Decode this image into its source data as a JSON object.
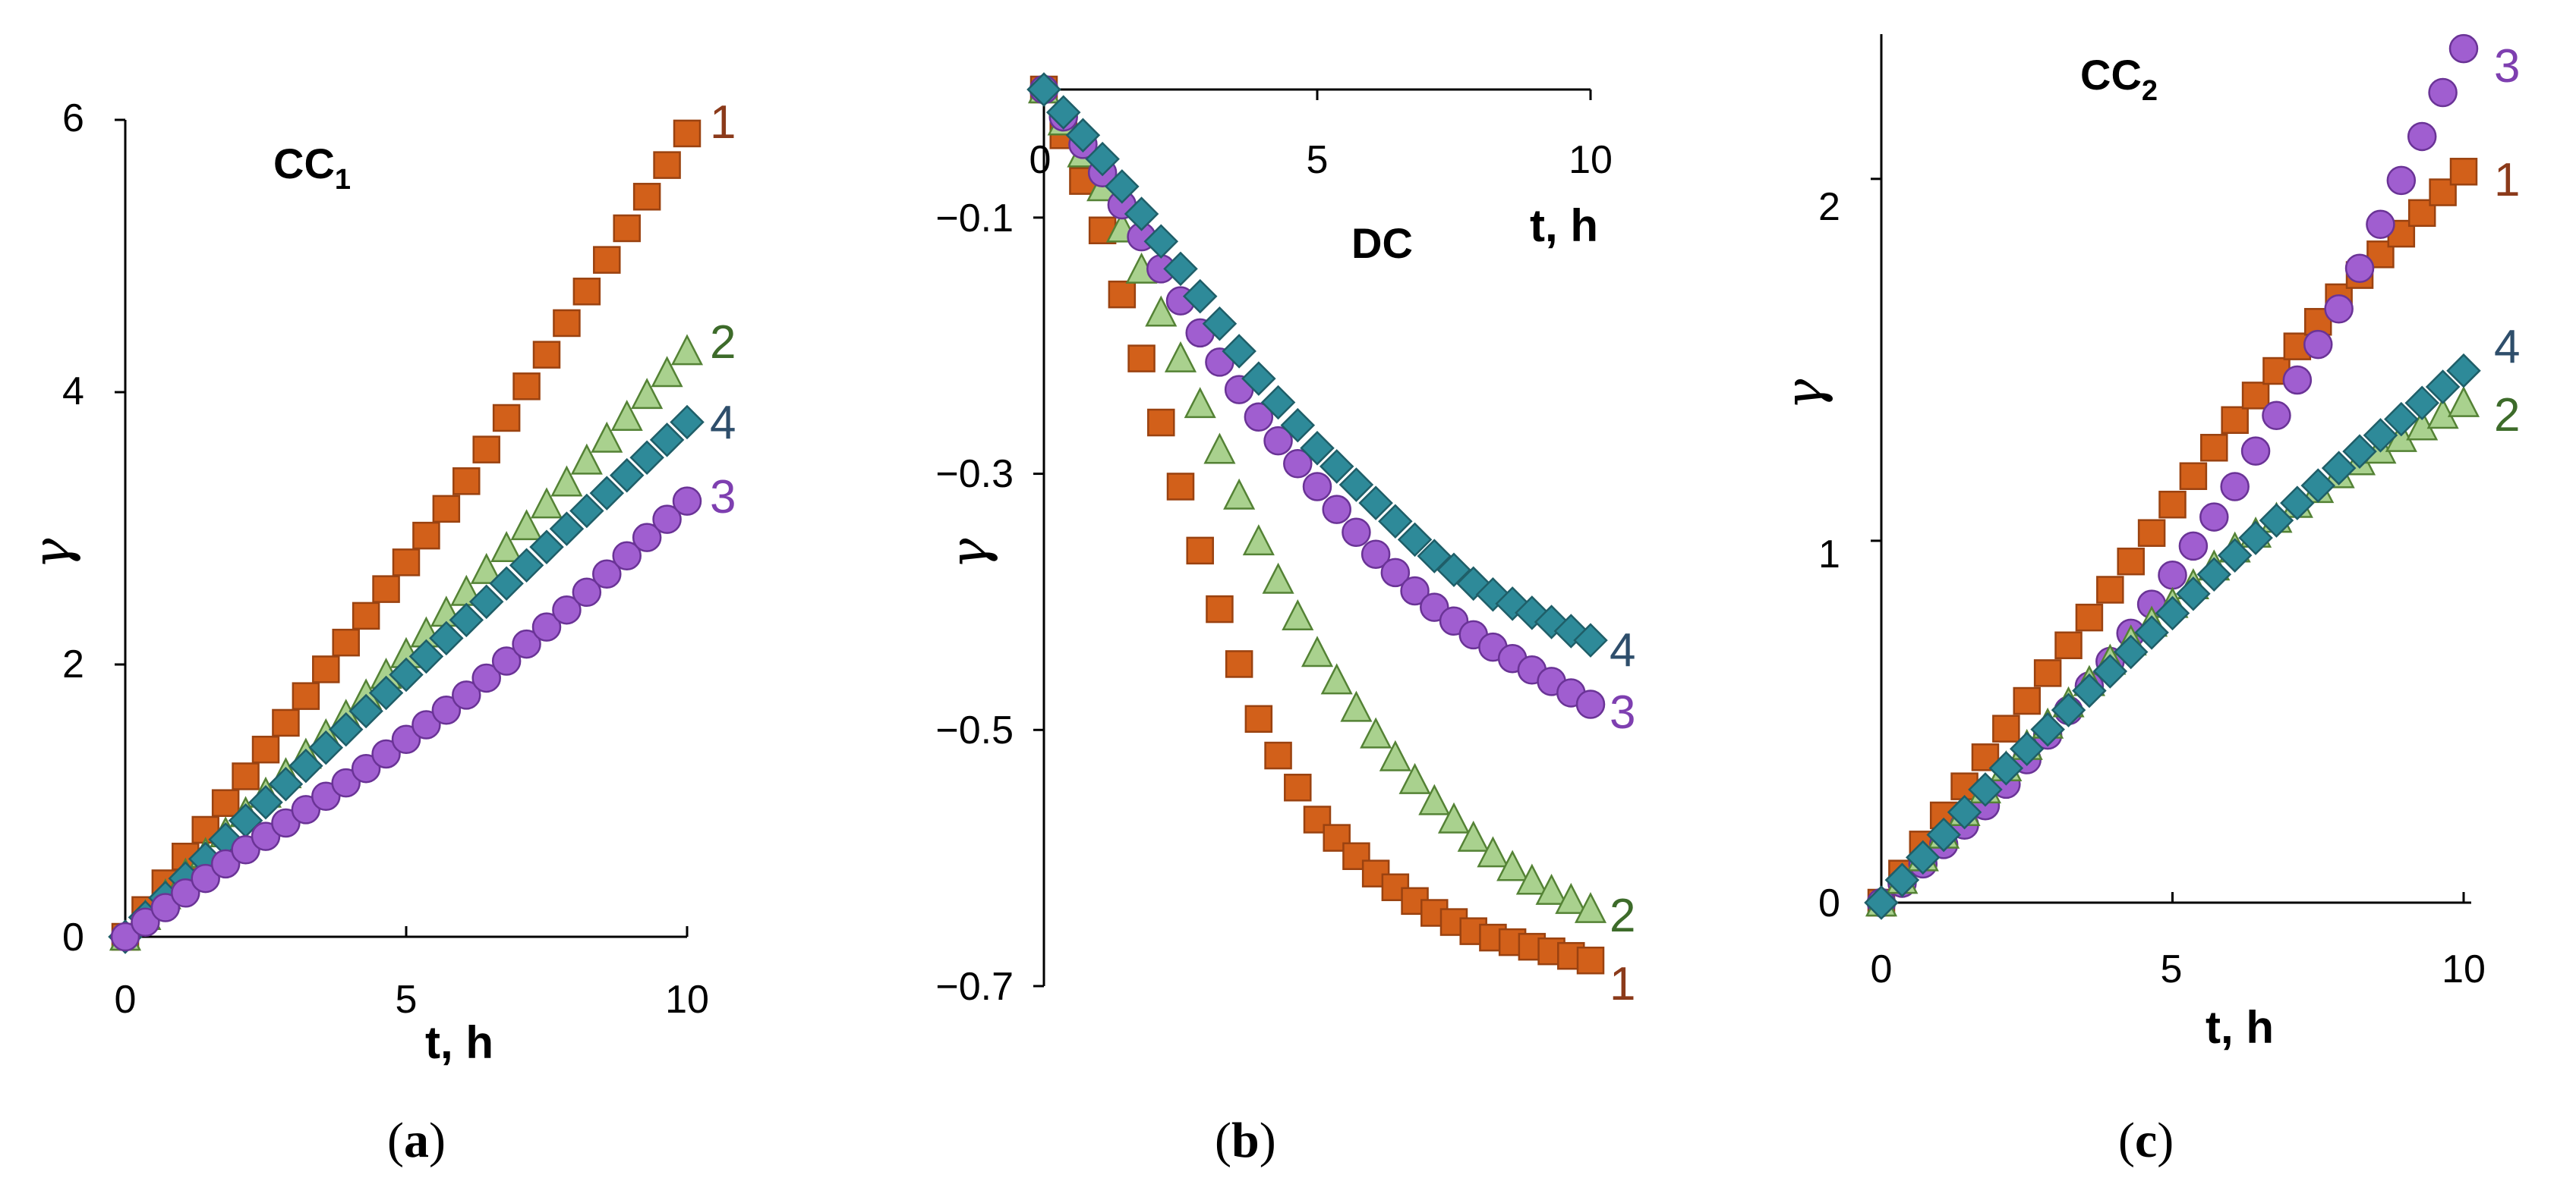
{
  "series_styles": [
    {
      "id": "1",
      "marker": "square",
      "fill": "#D2601A",
      "stroke": "#9A4210",
      "label_color": "#8B3A1A"
    },
    {
      "id": "2",
      "marker": "triangle",
      "fill": "#A9D18E",
      "stroke": "#548235",
      "label_color": "#3D6B2A"
    },
    {
      "id": "3",
      "marker": "circle",
      "fill": "#A05ED0",
      "stroke": "#6A3396",
      "label_color": "#7E3FB0"
    },
    {
      "id": "4",
      "marker": "diamond",
      "fill": "#2E8A99",
      "stroke": "#1F5E68",
      "label_color": "#2E4E6B"
    }
  ],
  "chart_data": [
    {
      "panel": "a",
      "type": "scatter",
      "title_main": "CC",
      "title_sub": "1",
      "caption_open": "(",
      "caption_letter": "a",
      "caption_close": ")",
      "xlabel": "t, h",
      "ylabel": "γ",
      "xlim": [
        0,
        10
      ],
      "ylim": [
        0,
        6
      ],
      "xticks": [
        "0",
        "5",
        "10"
      ],
      "yticks": [
        "0",
        "2",
        "4",
        "6"
      ],
      "series": [
        {
          "name": "1",
          "x0": 0,
          "x1": 10,
          "n": 29,
          "y": [
            [
              0,
              0
            ],
            [
              2,
              1.1
            ],
            [
              4,
              2.2
            ],
            [
              6,
              3.3
            ],
            [
              8,
              4.6
            ],
            [
              10,
              5.9
            ]
          ]
        },
        {
          "name": "2",
          "x0": 0,
          "x1": 10,
          "n": 29,
          "y": [
            [
              0,
              0
            ],
            [
              2,
              0.85
            ],
            [
              4,
              1.65
            ],
            [
              6,
              2.5
            ],
            [
              8,
              3.4
            ],
            [
              10,
              4.3
            ]
          ]
        },
        {
          "name": "4",
          "x0": 0,
          "x1": 10,
          "n": 29,
          "y": [
            [
              0,
              0
            ],
            [
              2,
              0.8
            ],
            [
              4,
              1.55
            ],
            [
              6,
              2.3
            ],
            [
              8,
              3.05
            ],
            [
              10,
              3.78
            ]
          ]
        },
        {
          "name": "3",
          "x0": 0,
          "x1": 10,
          "n": 29,
          "y": [
            [
              0,
              0
            ],
            [
              2,
              0.6
            ],
            [
              4,
              1.15
            ],
            [
              6,
              1.75
            ],
            [
              8,
              2.45
            ],
            [
              10,
              3.2
            ]
          ]
        }
      ]
    },
    {
      "panel": "b",
      "type": "scatter",
      "title_main": "DC",
      "caption_open": "(",
      "caption_letter": "b",
      "caption_close": ")",
      "xlabel": "t, h",
      "ylabel": "γ",
      "xlim": [
        0,
        10
      ],
      "ylim": [
        -0.7,
        0
      ],
      "xticks": [
        "0",
        "5",
        "10"
      ],
      "yticks": [
        "−0.1",
        "−0.3",
        "−0.5",
        "−0.7"
      ],
      "series": [
        {
          "name": "1",
          "x0": 0,
          "x1": 10,
          "n": 29,
          "y": [
            [
              0,
              0
            ],
            [
              1,
              -0.1
            ],
            [
              2,
              -0.24
            ],
            [
              3,
              -0.38
            ],
            [
              4,
              -0.5
            ],
            [
              5,
              -0.57
            ],
            [
              6,
              -0.61
            ],
            [
              7,
              -0.64
            ],
            [
              8,
              -0.66
            ],
            [
              9,
              -0.67
            ],
            [
              10,
              -0.68
            ]
          ]
        },
        {
          "name": "2",
          "x0": 0,
          "x1": 10,
          "n": 29,
          "y": [
            [
              0,
              0
            ],
            [
              1,
              -0.07
            ],
            [
              2,
              -0.16
            ],
            [
              3,
              -0.26
            ],
            [
              4,
              -0.36
            ],
            [
              5,
              -0.44
            ],
            [
              6,
              -0.5
            ],
            [
              7,
              -0.55
            ],
            [
              8,
              -0.59
            ],
            [
              9,
              -0.62
            ],
            [
              10,
              -0.64
            ]
          ]
        },
        {
          "name": "3",
          "x0": 0,
          "x1": 10,
          "n": 29,
          "y": [
            [
              0,
              0
            ],
            [
              1,
              -0.06
            ],
            [
              2,
              -0.13
            ],
            [
              3,
              -0.2
            ],
            [
              4,
              -0.26
            ],
            [
              5,
              -0.31
            ],
            [
              6,
              -0.36
            ],
            [
              7,
              -0.4
            ],
            [
              8,
              -0.43
            ],
            [
              9,
              -0.455
            ],
            [
              10,
              -0.48
            ]
          ]
        },
        {
          "name": "4",
          "x0": 0,
          "x1": 10,
          "n": 29,
          "y": [
            [
              0,
              0
            ],
            [
              1,
              -0.05
            ],
            [
              2,
              -0.11
            ],
            [
              3,
              -0.17
            ],
            [
              4,
              -0.23
            ],
            [
              5,
              -0.28
            ],
            [
              6,
              -0.32
            ],
            [
              7,
              -0.36
            ],
            [
              8,
              -0.39
            ],
            [
              9,
              -0.41
            ],
            [
              10,
              -0.43
            ]
          ]
        }
      ]
    },
    {
      "panel": "c",
      "type": "scatter",
      "title_main": "CC",
      "title_sub": "2",
      "caption_open": "(",
      "caption_letter": "c",
      "caption_close": ")",
      "xlabel": "t, h",
      "ylabel": "γ",
      "xlim": [
        0,
        10
      ],
      "ylim": [
        0,
        2.4
      ],
      "xticks": [
        "0",
        "5",
        "10"
      ],
      "yticks": [
        "0",
        "1",
        "2"
      ],
      "series": [
        {
          "name": "1",
          "x0": 0,
          "x1": 10,
          "n": 29,
          "y": [
            [
              0,
              0
            ],
            [
              2,
              0.45
            ],
            [
              4,
              0.88
            ],
            [
              6,
              1.32
            ],
            [
              8,
              1.7
            ],
            [
              10,
              2.02
            ]
          ]
        },
        {
          "name": "3",
          "x0": 0,
          "x1": 10,
          "n": 29,
          "y": [
            [
              0,
              0
            ],
            [
              2,
              0.3
            ],
            [
              4,
              0.68
            ],
            [
              6,
              1.13
            ],
            [
              8,
              1.68
            ],
            [
              10,
              2.36
            ]
          ]
        },
        {
          "name": "2",
          "x0": 0,
          "x1": 10,
          "n": 29,
          "y": [
            [
              0,
              0
            ],
            [
              2,
              0.35
            ],
            [
              4,
              0.68
            ],
            [
              6,
              0.97
            ],
            [
              8,
              1.2
            ],
            [
              10,
              1.38
            ]
          ]
        },
        {
          "name": "4",
          "x0": 0,
          "x1": 10,
          "n": 29,
          "y": [
            [
              0,
              0
            ],
            [
              2,
              0.35
            ],
            [
              4,
              0.65
            ],
            [
              6,
              0.95
            ],
            [
              8,
              1.22
            ],
            [
              10,
              1.47
            ]
          ]
        }
      ]
    }
  ]
}
